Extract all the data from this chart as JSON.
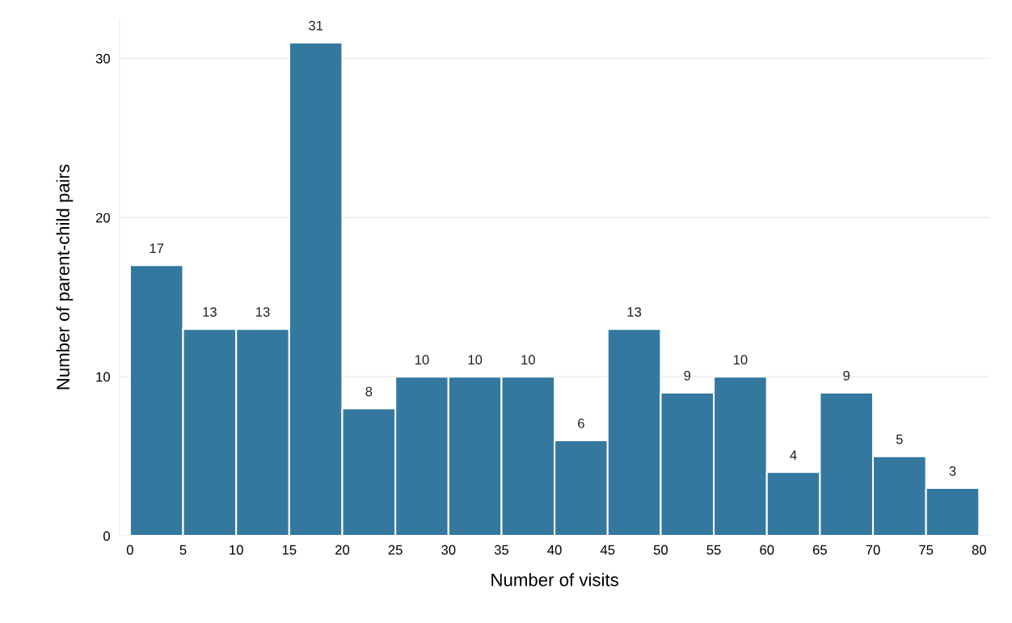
{
  "chart_data": {
    "type": "histogram",
    "xlabel": "Number of visits",
    "ylabel": "Number of parent-child pairs",
    "bins": [
      0,
      5,
      10,
      15,
      20,
      25,
      30,
      35,
      40,
      45,
      50,
      55,
      60,
      65,
      70,
      75,
      80
    ],
    "values": [
      17,
      13,
      13,
      31,
      8,
      10,
      10,
      10,
      6,
      13,
      9,
      10,
      4,
      9,
      5,
      3
    ],
    "color": "#35789f",
    "data_labels": true,
    "grid": "y",
    "xlim": [
      -1,
      81
    ],
    "xticks": [
      0,
      5,
      10,
      15,
      20,
      25,
      30,
      35,
      40,
      45,
      50,
      55,
      60,
      65,
      70,
      75,
      80
    ],
    "ylim": [
      0,
      32.5
    ],
    "yticks": [
      0,
      10,
      20,
      30
    ]
  }
}
